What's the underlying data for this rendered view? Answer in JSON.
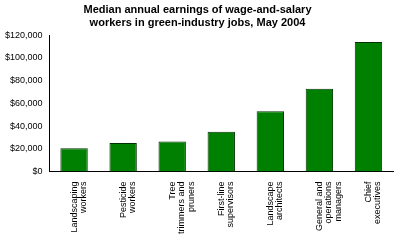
{
  "chart_data": {
    "type": "bar",
    "title": "Median annual earnings of wage-and-salary workers in green-industry jobs, May 2004",
    "categories": [
      "Landscaping workers",
      "Pesticide workers",
      "Tree trimmers and pruners",
      "First-line supervisors",
      "Landscape architects",
      "General and operations managers",
      "Chief executives"
    ],
    "values": [
      20500,
      25000,
      26500,
      35000,
      53000,
      73000,
      114000
    ],
    "color": "#008000",
    "ylim": [
      0,
      120000
    ],
    "yticks": [
      {
        "value": 0,
        "label": "$0"
      },
      {
        "value": 20000,
        "label": "$20,000"
      },
      {
        "value": 40000,
        "label": "$40,000"
      },
      {
        "value": 60000,
        "label": "$60,000"
      },
      {
        "value": 80000,
        "label": "$80,000"
      },
      {
        "value": 100000,
        "label": "$100,000"
      },
      {
        "value": 120000,
        "label": "$120,000"
      }
    ],
    "grid": false
  }
}
